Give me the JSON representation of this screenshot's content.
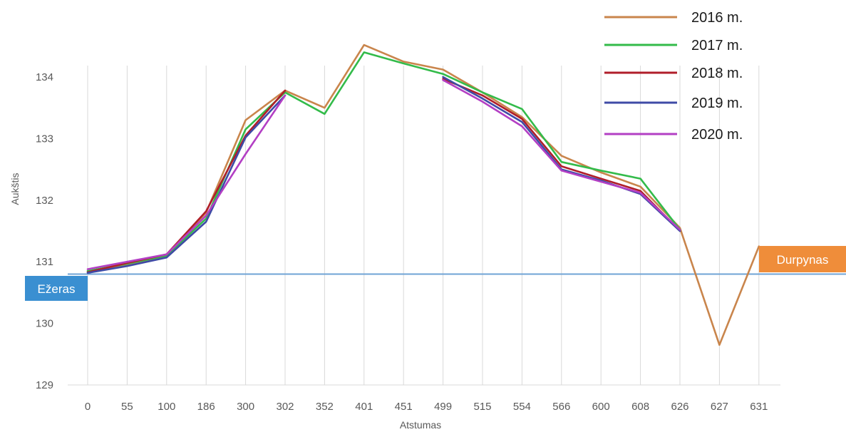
{
  "chart_data": {
    "type": "line",
    "title": "",
    "xlabel": "Atstumas",
    "ylabel": "Aukštis",
    "categories": [
      "0",
      "55",
      "100",
      "186",
      "300",
      "302",
      "352",
      "401",
      "451",
      "499",
      "515",
      "554",
      "566",
      "600",
      "608",
      "626",
      "627",
      "631"
    ],
    "ylim": [
      129,
      134.6
    ],
    "yticks": [
      129,
      130,
      131,
      132,
      133,
      134
    ],
    "grid": "vertical lines at each category",
    "legend_position": "top-right",
    "series": [
      {
        "name": "2016 m.",
        "color": "#c9854c",
        "values": [
          130.85,
          130.95,
          131.1,
          131.8,
          133.3,
          133.78,
          133.5,
          134.52,
          134.25,
          134.12,
          133.75,
          133.35,
          132.72,
          132.45,
          132.22,
          131.55,
          129.65,
          131.25
        ]
      },
      {
        "name": "2017 m.",
        "color": "#33bb4a",
        "values": [
          130.85,
          130.97,
          131.1,
          131.7,
          133.15,
          133.75,
          133.4,
          134.4,
          134.22,
          134.05,
          133.75,
          133.48,
          132.62,
          132.48,
          132.35,
          131.52,
          null,
          null
        ]
      },
      {
        "name": "2018 m.",
        "color": "#b01e2a",
        "values": [
          130.83,
          130.98,
          131.12,
          131.82,
          133.05,
          133.78,
          null,
          null,
          null,
          133.97,
          133.7,
          133.32,
          132.55,
          132.35,
          132.15,
          131.5,
          null,
          null
        ]
      },
      {
        "name": "2019 m.",
        "color": "#3f4ba6",
        "values": [
          130.82,
          130.93,
          131.07,
          131.65,
          133.02,
          133.7,
          null,
          null,
          null,
          134.0,
          133.65,
          133.27,
          132.5,
          132.32,
          132.1,
          131.5,
          null,
          null
        ]
      },
      {
        "name": "2020 m.",
        "color": "#b33fc4",
        "values": [
          130.88,
          131.0,
          131.12,
          131.75,
          132.75,
          133.7,
          null,
          null,
          null,
          133.95,
          133.6,
          133.2,
          132.48,
          132.3,
          132.12,
          131.52,
          null,
          null
        ]
      }
    ],
    "reference_line": {
      "value": 130.8,
      "color": "#6fa3d6"
    },
    "annotations": [
      {
        "text": "Ežeras",
        "color": "#3a8fd1",
        "side": "left"
      },
      {
        "text": "Durpynas",
        "color": "#ef8d3a",
        "side": "right"
      }
    ]
  }
}
